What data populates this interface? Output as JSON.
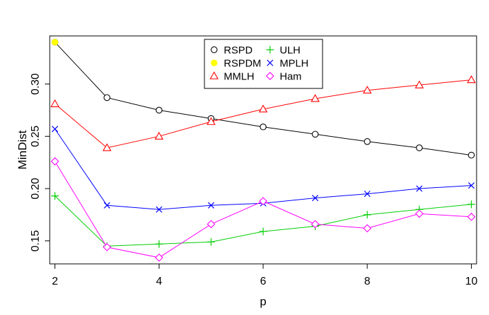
{
  "chart_data": {
    "type": "line",
    "title": "",
    "xlabel": "p",
    "ylabel": "MinDist",
    "xlim": [
      1.9,
      10.1
    ],
    "ylim": [
      0.128,
      0.346
    ],
    "xticks": [
      2,
      4,
      6,
      8,
      10
    ],
    "yticks": [
      0.15,
      0.2,
      0.25,
      0.3
    ],
    "ytick_labels": [
      "0.15",
      "0.20",
      "0.25",
      "0.30"
    ],
    "grid": false,
    "legend_position": "top-center",
    "series": [
      {
        "name": "RSPD",
        "color": "#000000",
        "marker": "circle",
        "x": [
          2,
          3,
          4,
          5,
          6,
          7,
          8,
          9,
          10
        ],
        "y": [
          0.34,
          0.287,
          0.275,
          0.267,
          0.259,
          0.252,
          0.245,
          0.239,
          0.232
        ]
      },
      {
        "name": "RSPDM",
        "color": "#ffff00",
        "marker": "filled-circle",
        "x": [
          2
        ],
        "y": [
          0.34
        ]
      },
      {
        "name": "MMLH",
        "color": "#ff0000",
        "marker": "triangle",
        "x": [
          2,
          3,
          4,
          5,
          6,
          7,
          8,
          9,
          10
        ],
        "y": [
          0.281,
          0.239,
          0.25,
          0.264,
          0.276,
          0.286,
          0.294,
          0.299,
          0.304
        ]
      },
      {
        "name": "ULH",
        "color": "#00cd00",
        "marker": "plus",
        "x": [
          2,
          3,
          4,
          5,
          6,
          7,
          8,
          9,
          10
        ],
        "y": [
          0.193,
          0.145,
          0.147,
          0.149,
          0.159,
          0.164,
          0.175,
          0.18,
          0.185
        ]
      },
      {
        "name": "MPLH",
        "color": "#0000ff",
        "marker": "cross",
        "x": [
          2,
          3,
          4,
          5,
          6,
          7,
          8,
          9,
          10
        ],
        "y": [
          0.257,
          0.184,
          0.18,
          0.184,
          0.186,
          0.191,
          0.195,
          0.2,
          0.203
        ]
      },
      {
        "name": "Ham",
        "color": "#ff00ff",
        "marker": "diamond",
        "x": [
          2,
          3,
          4,
          5,
          6,
          7,
          8,
          9,
          10
        ],
        "y": [
          0.226,
          0.144,
          0.134,
          0.166,
          0.188,
          0.166,
          0.162,
          0.176,
          0.173
        ]
      }
    ]
  }
}
